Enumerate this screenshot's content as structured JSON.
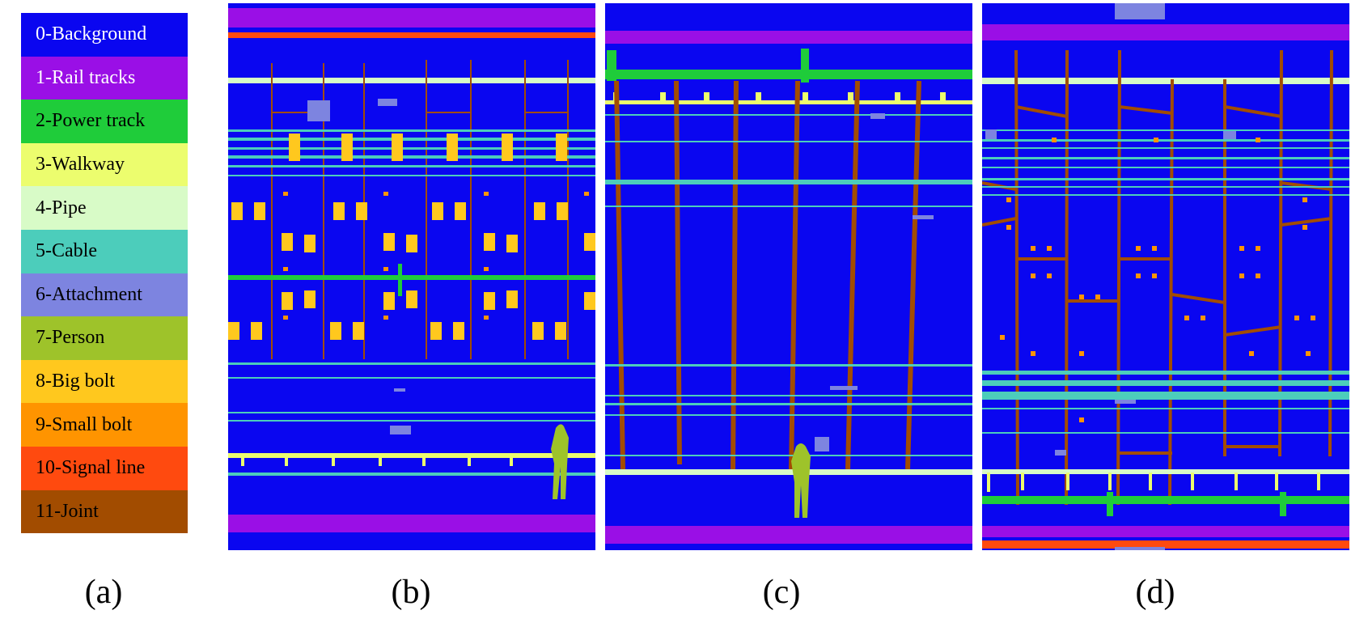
{
  "legend": [
    {
      "label": "0-Background",
      "color": "#0a06f0",
      "text_color": "#ffffff"
    },
    {
      "label": "1-Rail tracks",
      "color": "#9a0fe6",
      "text_color": "#ffffff"
    },
    {
      "label": "2-Power track",
      "color": "#1fcc3a",
      "text_color": "#000000"
    },
    {
      "label": "3-Walkway",
      "color": "#ecfd6e",
      "text_color": "#000000"
    },
    {
      "label": "4-Pipe",
      "color": "#d8fbc7",
      "text_color": "#000000"
    },
    {
      "label": "5-Cable",
      "color": "#4ccdbb",
      "text_color": "#000000"
    },
    {
      "label": "6-Attachment",
      "color": "#7d84e0",
      "text_color": "#000000"
    },
    {
      "label": "7-Person",
      "color": "#9ec32a",
      "text_color": "#000000"
    },
    {
      "label": "8-Big bolt",
      "color": "#ffc81e",
      "text_color": "#000000"
    },
    {
      "label": "9-Small bolt",
      "color": "#ff9400",
      "text_color": "#000000"
    },
    {
      "label": "10-Signal line",
      "color": "#ff4a0f",
      "text_color": "#000000"
    },
    {
      "label": "11-Joint",
      "color": "#a24c00",
      "text_color": "#000000"
    }
  ],
  "captions": {
    "a": "(a)",
    "b": "(b)",
    "c": "(c)",
    "d": "(d)"
  }
}
